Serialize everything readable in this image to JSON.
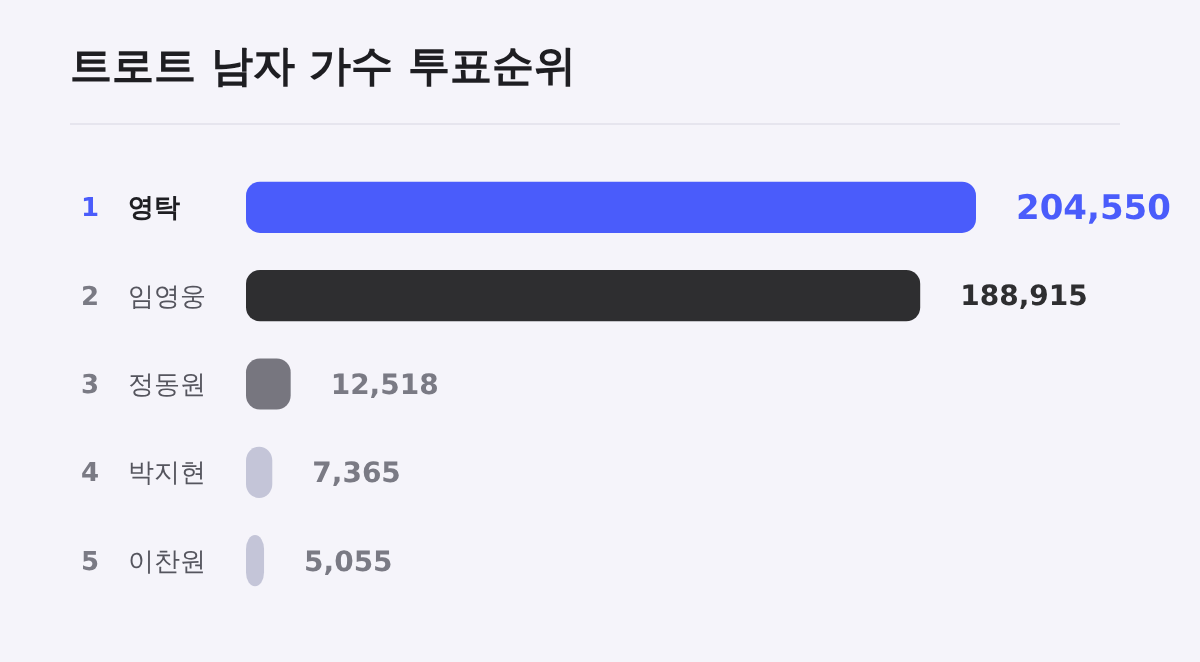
{
  "chart_data": {
    "type": "bar",
    "orientation": "horizontal",
    "relative": false,
    "title": "트로트 남자 가수 투표순위",
    "categories": [
      "영탁",
      "임영웅",
      "정동원",
      "박지현",
      "이찬원"
    ],
    "values": [
      204550,
      188915,
      12518,
      7365,
      5055
    ],
    "colors": [
      "#4a5cfb",
      "#2e2e30",
      "#77767f",
      "#c4c5d8",
      "#c4c5d8"
    ],
    "value_labels": [
      "204,550",
      "188,915",
      "12,518",
      "7,365",
      "5,055"
    ],
    "annotations": [
      "1",
      "2",
      "3",
      "4",
      "5"
    ]
  }
}
